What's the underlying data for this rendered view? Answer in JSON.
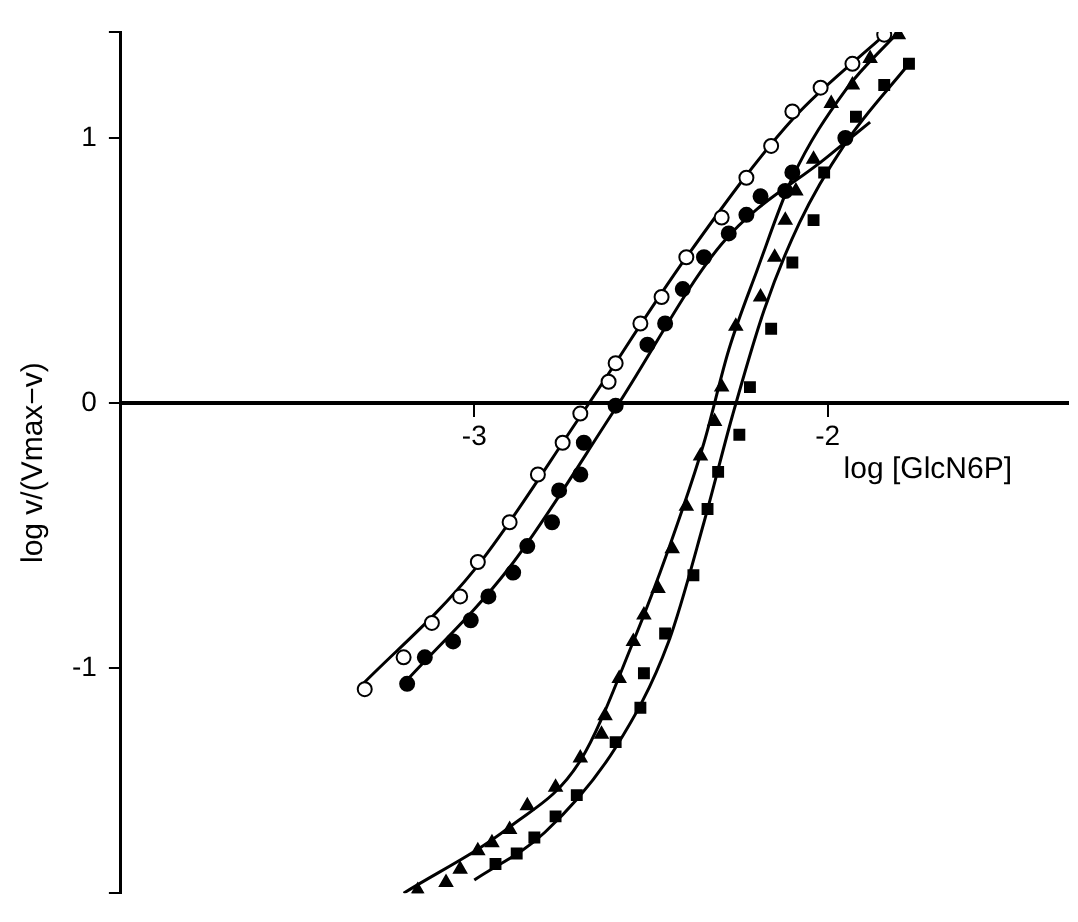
{
  "chart_data": {
    "type": "scatter",
    "xlabel": "log [GlcN6P]",
    "ylabel": "log v/(Vmax−v)",
    "xlim": [
      -4,
      -1.32
    ],
    "xticks": [
      -3,
      -2
    ],
    "ylim": [
      -1.85,
      1.4
    ],
    "yticks": [
      {
        "value": -1.85,
        "label": null
      },
      -1,
      0,
      1,
      {
        "value": 1.4,
        "label": null
      }
    ],
    "grid": false,
    "legend": false,
    "series": [
      {
        "marker": "circle",
        "color": "#ffffff",
        "x": [
          -1.84,
          -1.93,
          -2.02,
          -2.1,
          -2.16,
          -2.23,
          -2.3,
          -2.4,
          -2.47,
          -2.53,
          -2.6,
          -2.62,
          -2.7,
          -2.75,
          -2.82,
          -2.9,
          -2.99,
          -3.04,
          -3.12,
          -3.2,
          -3.31
        ],
        "values": [
          1.39,
          1.28,
          1.19,
          1.1,
          0.97,
          0.85,
          0.7,
          0.55,
          0.4,
          0.3,
          0.15,
          0.08,
          -0.04,
          -0.15,
          -0.27,
          -0.45,
          -0.6,
          -0.73,
          -0.83,
          -0.96,
          -1.08
        ]
      },
      {
        "marker": "circle",
        "color": "#000000",
        "x": [
          -1.95,
          -2.1,
          -2.12,
          -2.19,
          -2.23,
          -2.28,
          -2.35,
          -2.41,
          -2.46,
          -2.51,
          -2.6,
          -2.69,
          -2.7,
          -2.76,
          -2.78,
          -2.85,
          -2.89,
          -2.96,
          -3.01,
          -3.06,
          -3.14,
          -3.19
        ],
        "values": [
          1.0,
          0.87,
          0.8,
          0.78,
          0.71,
          0.64,
          0.55,
          0.43,
          0.3,
          0.22,
          -0.01,
          -0.15,
          -0.27,
          -0.33,
          -0.45,
          -0.54,
          -0.64,
          -0.73,
          -0.82,
          -0.9,
          -0.96,
          -1.06
        ]
      },
      {
        "marker": "triangle",
        "color": "#000000",
        "x": [
          -1.8,
          -1.88,
          -1.93,
          -1.99,
          -2.04,
          -2.09,
          -2.12,
          -2.15,
          -2.19,
          -2.26,
          -2.3,
          -2.32,
          -2.36,
          -2.4,
          -2.44,
          -2.48,
          -2.52,
          -2.55,
          -2.59,
          -2.63,
          -2.64,
          -2.7,
          -2.77,
          -2.85,
          -2.9,
          -2.95,
          -2.99,
          -3.04,
          -3.08,
          -3.16
        ],
        "values": [
          1.39,
          1.3,
          1.2,
          1.13,
          0.92,
          0.8,
          0.69,
          0.55,
          0.4,
          0.29,
          0.06,
          -0.07,
          -0.2,
          -0.39,
          -0.55,
          -0.7,
          -0.8,
          -0.9,
          -1.04,
          -1.18,
          -1.25,
          -1.34,
          -1.45,
          -1.52,
          -1.61,
          -1.66,
          -1.69,
          -1.76,
          -1.81,
          -1.84
        ]
      },
      {
        "marker": "square",
        "color": "#000000",
        "x": [
          -1.77,
          -1.84,
          -1.92,
          -2.01,
          -2.04,
          -2.1,
          -2.16,
          -2.22,
          -2.25,
          -2.31,
          -2.34,
          -2.38,
          -2.46,
          -2.52,
          -2.53,
          -2.6,
          -2.71,
          -2.77,
          -2.83,
          -2.88,
          -2.94
        ],
        "values": [
          1.28,
          1.2,
          1.08,
          0.87,
          0.69,
          0.53,
          0.28,
          0.06,
          -0.12,
          -0.26,
          -0.4,
          -0.65,
          -0.87,
          -1.02,
          -1.15,
          -1.28,
          -1.48,
          -1.56,
          -1.64,
          -1.7,
          -1.74
        ]
      },
      {
        "type": "line",
        "marker": "none",
        "color": "#000000",
        "x": [
          -3.33,
          -3.0,
          -2.7,
          -2.4,
          -2.1,
          -1.83
        ],
        "values": [
          -1.08,
          -0.63,
          -0.05,
          0.55,
          1.07,
          1.4
        ]
      },
      {
        "type": "line",
        "marker": "none",
        "color": "#000000",
        "x": [
          -3.2,
          -2.9,
          -2.6,
          -2.3,
          -2.0,
          -1.88
        ],
        "values": [
          -1.06,
          -0.62,
          -0.02,
          0.6,
          0.93,
          1.06
        ]
      },
      {
        "type": "line",
        "marker": "none",
        "color": "#000000",
        "x": [
          -3.2,
          -2.9,
          -2.7,
          -2.55,
          -2.45,
          -2.35,
          -2.28,
          -2.2,
          -2.1,
          -1.95,
          -1.8
        ],
        "values": [
          -1.85,
          -1.6,
          -1.35,
          -0.9,
          -0.55,
          -0.15,
          0.2,
          0.5,
          0.85,
          1.18,
          1.4
        ]
      },
      {
        "type": "line",
        "marker": "none",
        "color": "#000000",
        "x": [
          -3.0,
          -2.8,
          -2.6,
          -2.45,
          -2.35,
          -2.27,
          -2.18,
          -2.08,
          -1.95,
          -1.77
        ],
        "values": [
          -1.8,
          -1.62,
          -1.3,
          -0.9,
          -0.45,
          -0.05,
          0.35,
          0.68,
          0.98,
          1.28
        ]
      }
    ]
  }
}
